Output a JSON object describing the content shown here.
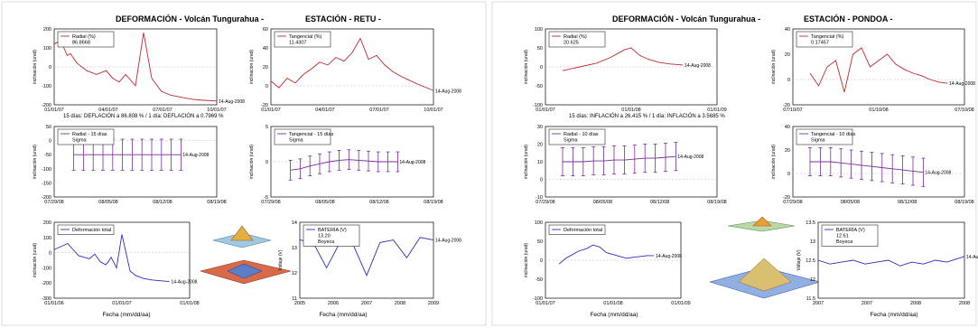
{
  "colors": {
    "red": "#c0282c",
    "blue": "#2a2fb5",
    "purple": "#7a2d9a",
    "panel_bg": "#ffffff",
    "axis": "#000000",
    "grid": "#b8b8b8"
  },
  "figures": [
    {
      "title_left": "DEFORMACIÓN - Volcán Tungurahua -",
      "title_right": "ESTACIÓN - RETU -",
      "caption": "15 días: DEFLACIÓN a 86.808 % / 1 día: DEFLACIÓN a 0.7969 %",
      "xlabel": "Fecha (mm/dd/aa)"
    },
    {
      "title_left": "DEFORMACIÓN - Volcán Tungurahua -",
      "title_right": "ESTACIÓN - PONDOA -",
      "caption": "15 días: INFLACIÓN a 26.415 % / 1 día: INFLACIÓN a 3.5685 %",
      "xlabel": "Fecha (mm/dd/aa)"
    }
  ],
  "chart_data": [
    {
      "figure": 0,
      "panel": "radial",
      "type": "line",
      "legend": "Radial (%)",
      "legend_value": "86.8668",
      "ylabel": "inclinación (urad)",
      "ylim": [
        -200,
        200
      ],
      "ytick_labels": [
        "-200",
        "-100",
        "0",
        "100",
        "200"
      ],
      "xtick_labels": [
        "01/01/07",
        "04/01/07",
        "07/01/07",
        "10/01/07"
      ],
      "annotations": [
        "14-Aug-2008",
        "10-Aug"
      ],
      "color": "#c0282c",
      "x": [
        0,
        0.04,
        0.08,
        0.1,
        0.14,
        0.2,
        0.26,
        0.32,
        0.36,
        0.4,
        0.44,
        0.5,
        0.55,
        0.6,
        0.66,
        0.72,
        0.78,
        0.84,
        0.9,
        1.0
      ],
      "values": [
        120,
        140,
        60,
        70,
        20,
        -20,
        -40,
        -20,
        -60,
        -80,
        -40,
        -100,
        180,
        -60,
        -130,
        -150,
        -160,
        -170,
        -175,
        -180
      ]
    },
    {
      "figure": 0,
      "panel": "tangential",
      "type": "line",
      "legend": "Tangencial (%)",
      "legend_value": "11.4307",
      "ylabel": "inclinación (urad)",
      "ylim": [
        -20,
        60
      ],
      "ytick_labels": [
        "-20",
        "0",
        "20",
        "40",
        "60"
      ],
      "xtick_labels": [
        "01/01/07",
        "04/01/07",
        "07/01/07",
        "10/01/07"
      ],
      "annotations": [
        "14-Aug-2008",
        "10-Aug"
      ],
      "color": "#c0282c",
      "x": [
        0,
        0.05,
        0.1,
        0.15,
        0.2,
        0.25,
        0.3,
        0.35,
        0.4,
        0.45,
        0.5,
        0.55,
        0.6,
        0.65,
        0.7,
        0.75,
        0.8,
        0.85,
        0.9,
        1.0
      ],
      "values": [
        5,
        -2,
        8,
        3,
        12,
        18,
        25,
        22,
        30,
        26,
        35,
        50,
        28,
        32,
        22,
        15,
        10,
        6,
        2,
        -5
      ]
    },
    {
      "figure": 0,
      "panel": "radial15",
      "type": "line",
      "legend": [
        "Radial - 15 días",
        "Sigma"
      ],
      "ylabel": "inclinación (urad)",
      "ylim": [
        -200,
        50
      ],
      "ytick_labels": [
        "-200",
        "-150",
        "-100",
        "-50",
        "0",
        "50"
      ],
      "xtick_labels": [
        "07/29/08",
        "08/05/08",
        "08/12/08",
        "08/19/08"
      ],
      "annotations": [
        "14-Aug-2008"
      ],
      "color": "#7a2d9a",
      "x": [
        0.12,
        0.18,
        0.24,
        0.3,
        0.36,
        0.42,
        0.48,
        0.54,
        0.6,
        0.66,
        0.72,
        0.78
      ],
      "values": [
        -50,
        -50,
        -50,
        -50,
        -50,
        -50,
        -50,
        -50,
        -50,
        -50,
        -50,
        -50
      ],
      "sigma": 55
    },
    {
      "figure": 0,
      "panel": "tangential15",
      "type": "line",
      "legend": [
        "Tangencial - 15 días",
        "Sigma"
      ],
      "ylabel": "inclinación (urad)",
      "ylim": [
        -5,
        5
      ],
      "ytick_labels": [
        "-5",
        "0",
        "5"
      ],
      "xtick_labels": [
        "07/29/08",
        "08/05/08",
        "08/12/08",
        "08/19/08"
      ],
      "annotations": [
        "14-Aug-2008"
      ],
      "color": "#7a2d9a",
      "x": [
        0.12,
        0.18,
        0.24,
        0.3,
        0.36,
        0.42,
        0.48,
        0.54,
        0.6,
        0.66,
        0.72,
        0.78
      ],
      "values": [
        -1.2,
        -1.0,
        -0.6,
        -0.3,
        0.0,
        0.2,
        0.3,
        0.2,
        0.1,
        0.0,
        0.0,
        0.0
      ],
      "sigma": 1.4
    },
    {
      "figure": 0,
      "panel": "total",
      "type": "line",
      "legend": "Deformación total",
      "ylabel": "inclinación (urad)",
      "ylim": [
        -300,
        200
      ],
      "ytick_labels": [
        "-300",
        "-200",
        "-100",
        "0",
        "100",
        "200"
      ],
      "xtick_labels": [
        "01/01/06",
        "01/01/07",
        "01/01/08"
      ],
      "annotations": [
        "14-Aug-2008",
        "04-Aug"
      ],
      "color": "#2a2fb5",
      "x": [
        0,
        0.05,
        0.1,
        0.14,
        0.18,
        0.22,
        0.26,
        0.3,
        0.34,
        0.38,
        0.4,
        0.42,
        0.46,
        0.5,
        0.56,
        0.6,
        0.66,
        0.72,
        0.78,
        0.85
      ],
      "values": [
        20,
        40,
        60,
        20,
        -20,
        -30,
        -40,
        -10,
        -60,
        -80,
        -60,
        -30,
        -100,
        120,
        -120,
        -150,
        -170,
        -180,
        -185,
        -190
      ]
    },
    {
      "figure": 0,
      "panel": "battery",
      "type": "line",
      "legend": "BATERÍA (V)",
      "legend_value": "13.20",
      "legend_extra": "Boyeca",
      "ylabel": "Voltaje (V)",
      "ylim": [
        11,
        14
      ],
      "ytick_labels": [
        "11",
        "12",
        "13",
        "14"
      ],
      "xtick_labels": [
        "2005",
        "2006",
        "2007",
        "2008",
        "2009"
      ],
      "annotations": [
        "14-Aug-2008"
      ],
      "color": "#2a2fb5",
      "x": [
        0,
        0.1,
        0.2,
        0.3,
        0.4,
        0.5,
        0.6,
        0.7,
        0.8,
        0.9,
        1.0
      ],
      "values": [
        13.3,
        13.2,
        12.2,
        13.2,
        13.1,
        11.9,
        13.2,
        13.3,
        12.6,
        13.4,
        13.3
      ]
    },
    {
      "figure": 1,
      "panel": "radial",
      "type": "line",
      "legend": "Radial (%)",
      "legend_value": "20.625",
      "ylabel": "inclinación (urad)",
      "ylim": [
        -100,
        100
      ],
      "ytick_labels": [
        "-100",
        "-50",
        "0",
        "50",
        "100"
      ],
      "xtick_labels": [
        "01/01/07",
        "01/01/08",
        "01/01/09"
      ],
      "annotations": [
        "14-Aug-2008"
      ],
      "color": "#c0282c",
      "x": [
        0.1,
        0.2,
        0.3,
        0.38,
        0.42,
        0.46,
        0.5,
        0.55,
        0.6,
        0.66,
        0.72,
        0.8
      ],
      "values": [
        -10,
        0,
        10,
        25,
        35,
        45,
        50,
        30,
        20,
        12,
        8,
        5
      ]
    },
    {
      "figure": 1,
      "panel": "tangential",
      "type": "line",
      "legend": "Tangencial (%)",
      "legend_value": "0.17457",
      "ylabel": "inclinación (urad)",
      "ylim": [
        -20,
        40
      ],
      "ytick_labels": [
        "-20",
        "0",
        "20",
        "40"
      ],
      "xtick_labels": [
        "07/10/07",
        "01/10/08",
        "07/10/08"
      ],
      "annotations": [
        "14-Aug-2008"
      ],
      "color": "#c0282c",
      "x": [
        0.1,
        0.15,
        0.2,
        0.25,
        0.3,
        0.35,
        0.4,
        0.45,
        0.5,
        0.55,
        0.6,
        0.65,
        0.7,
        0.75,
        0.8,
        0.85,
        0.9
      ],
      "values": [
        5,
        -5,
        10,
        15,
        -10,
        20,
        25,
        10,
        15,
        20,
        12,
        8,
        5,
        3,
        0,
        -2,
        -3
      ]
    },
    {
      "figure": 1,
      "panel": "radial15",
      "type": "line",
      "legend": [
        "Radial - 10 días",
        "Sigma"
      ],
      "ylabel": "inclinación (urad)",
      "ylim": [
        -10,
        30
      ],
      "ytick_labels": [
        "-10",
        "0",
        "10",
        "20",
        "30"
      ],
      "xtick_labels": [
        "07/29/08",
        "08/05/08",
        "08/12/08",
        "08/19/08"
      ],
      "annotations": [
        "14-Aug-2008"
      ],
      "color": "#7a2d9a",
      "x": [
        0.1,
        0.16,
        0.22,
        0.28,
        0.34,
        0.4,
        0.46,
        0.52,
        0.58,
        0.64,
        0.7,
        0.76
      ],
      "values": [
        10,
        10,
        10,
        10.5,
        10.5,
        11,
        11,
        11.5,
        12,
        12,
        12.5,
        13
      ],
      "sigma": 8
    },
    {
      "figure": 1,
      "panel": "tangential15",
      "type": "line",
      "legend": [
        "Tangencial - 10 días",
        "Sigma"
      ],
      "ylabel": "inclinación (urad)",
      "ylim": [
        -20,
        40
      ],
      "ytick_labels": [
        "-20",
        "0",
        "20",
        "40"
      ],
      "xtick_labels": [
        "07/29/08",
        "08/05/08",
        "08/12/08",
        "08/19/08"
      ],
      "annotations": [
        "14-Aug-2008"
      ],
      "color": "#7a2d9a",
      "x": [
        0.1,
        0.16,
        0.22,
        0.28,
        0.34,
        0.4,
        0.46,
        0.52,
        0.58,
        0.64,
        0.7,
        0.76
      ],
      "values": [
        10,
        10,
        10,
        9,
        8,
        7,
        6,
        5,
        4,
        3,
        2,
        1
      ],
      "sigma": 12
    },
    {
      "figure": 1,
      "panel": "total",
      "type": "line",
      "legend": "Deformación total",
      "ylabel": "inclinación (urad)",
      "ylim": [
        -100,
        100
      ],
      "ytick_labels": [
        "-100",
        "-50",
        "0",
        "50",
        "100"
      ],
      "xtick_labels": [
        "01/01/07",
        "01/01/08",
        "01/01/09"
      ],
      "annotations": [
        "14-Aug-2008"
      ],
      "color": "#2a2fb5",
      "x": [
        0.1,
        0.15,
        0.2,
        0.25,
        0.3,
        0.35,
        0.4,
        0.45,
        0.5,
        0.55,
        0.6,
        0.65,
        0.7,
        0.75,
        0.8
      ],
      "values": [
        -10,
        5,
        15,
        25,
        30,
        40,
        35,
        20,
        15,
        10,
        5,
        8,
        10,
        12,
        12
      ]
    },
    {
      "figure": 1,
      "panel": "battery",
      "type": "line",
      "legend": "BATERÍA (V)",
      "legend_value": "12.61",
      "legend_extra": "Boyeca",
      "ylabel": "Voltaje (V)",
      "ylim": [
        11.5,
        13.5
      ],
      "ytick_labels": [
        "11.5",
        "12",
        "12.5",
        "13",
        "13.5"
      ],
      "xtick_labels": [
        "2007",
        "2007",
        "2008",
        "2008"
      ],
      "annotations": [
        "14-Aug-2008"
      ],
      "color": "#2a2fb5",
      "x": [
        0,
        0.08,
        0.16,
        0.24,
        0.32,
        0.4,
        0.48,
        0.56,
        0.64,
        0.72,
        0.8,
        0.88,
        1.0
      ],
      "values": [
        12.5,
        12.4,
        12.45,
        12.5,
        12.4,
        12.45,
        12.5,
        12.35,
        12.45,
        12.4,
        12.5,
        12.45,
        12.6
      ]
    }
  ]
}
